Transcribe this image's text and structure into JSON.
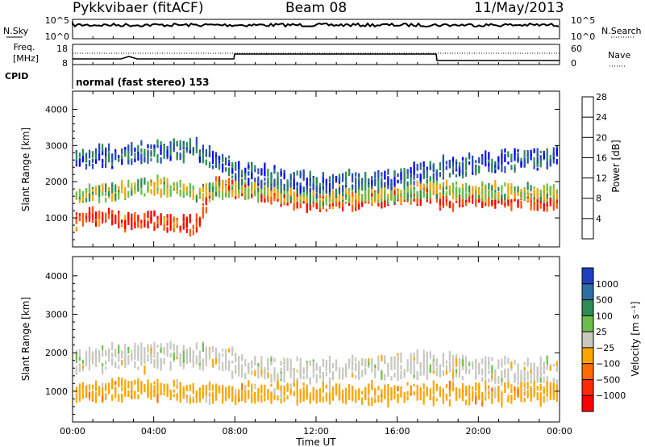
{
  "header": {
    "station": "Pykkvibaer (fitACF)",
    "beam": "Beam 08",
    "date": "11/May/2013"
  },
  "top_panels": {
    "nsky_label": "N.Sky",
    "nsky_ticks": [
      "10^5",
      "10^0"
    ],
    "nsearch_label": "N.Search",
    "nsearch_ticks": [
      "10^5",
      "10^0"
    ],
    "freq_label_1": "Freq.",
    "freq_label_2": "[MHz]",
    "freq_ticks": [
      "18",
      "8"
    ],
    "nave_label": "Nave",
    "nave_ticks": [
      "60",
      "0"
    ],
    "cpid_label": "CPID",
    "cpid_text": "normal (fast stereo) 153"
  },
  "chart_data": [
    {
      "type": "heatmap",
      "panel": "power",
      "ylabel": "Slant Range [km]",
      "xlabel": "",
      "ylim": [
        200,
        4500
      ],
      "yticks": [
        "1000",
        "2000",
        "3000",
        "4000"
      ],
      "colorbar_label": "Power [dB]",
      "colorbar_ticks": [
        "4",
        "8",
        "12",
        "16",
        "20",
        "24",
        "28"
      ],
      "colorbar_colors": [
        "#0000ff",
        "#2d4fb0",
        "#2e8b57",
        "#6abf4b",
        "#ffa500",
        "#ff5a00",
        "#ff0000"
      ],
      "colorbar_range": [
        0,
        30
      ],
      "echo_bands": [
        {
          "x": [
            0.2,
            1,
            2,
            3,
            4,
            5,
            6,
            6.5,
            7,
            8,
            9,
            10,
            11,
            12,
            13,
            14,
            15,
            16,
            17,
            17.9,
            18.1,
            19,
            20,
            21,
            22,
            23,
            23.8
          ],
          "y": [
            900,
            1000,
            1000,
            900,
            950,
            800,
            800,
            1300,
            1900,
            1800,
            1700,
            1600,
            1500,
            1450,
            1450,
            1500,
            1550,
            1600,
            1650,
            1700,
            1450,
            1500,
            1550,
            1500,
            1500,
            1450,
            1500
          ],
          "width": 380,
          "power": 26
        },
        {
          "x": [
            0.2,
            1,
            2,
            3,
            4,
            5,
            6,
            7,
            8,
            10,
            12,
            14,
            16,
            18,
            20,
            22,
            23.8
          ],
          "y": [
            1600,
            1700,
            1700,
            1800,
            1900,
            1800,
            1700,
            1800,
            1800,
            1700,
            1600,
            1650,
            1700,
            1800,
            1750,
            1700,
            1700
          ],
          "width": 380,
          "power": 16
        },
        {
          "x": [
            0.2,
            2,
            4,
            6,
            8,
            10,
            12,
            14,
            16,
            18,
            20,
            22,
            23.8
          ],
          "y": [
            2700,
            2700,
            2800,
            2900,
            2300,
            2100,
            1900,
            2000,
            2100,
            2300,
            2500,
            2600,
            2700
          ],
          "width": 500,
          "power": 7
        }
      ]
    },
    {
      "type": "heatmap",
      "panel": "velocity",
      "ylabel": "Slant Range [km]",
      "xlabel": "Time UT",
      "ylim": [
        200,
        4500
      ],
      "yticks": [
        "1000",
        "2000",
        "3000",
        "4000"
      ],
      "xticks": [
        "00:00",
        "04:00",
        "08:00",
        "12:00",
        "16:00",
        "20:00",
        "00:00"
      ],
      "colorbar_label": "Velocity [m s⁻¹]",
      "colorbar_ticks": [
        "1000",
        "500",
        "100",
        "25",
        "−25",
        "−100",
        "−500",
        "−1000"
      ],
      "colorbar_colors": [
        "#1f3fbf",
        "#2e6ea6",
        "#2e8b57",
        "#6abf4b",
        "#c8c8c0",
        "#ffa500",
        "#ff6a00",
        "#ff2a00",
        "#ff0000"
      ],
      "echo_bands": [
        {
          "x": [
            0.2,
            2,
            4,
            6,
            7,
            8,
            10,
            12,
            14,
            16,
            18,
            20,
            22,
            23.8
          ],
          "y": [
            1800,
            1900,
            1900,
            1900,
            1900,
            1700,
            1600,
            1550,
            1550,
            1600,
            1700,
            1550,
            1500,
            1500
          ],
          "width": 560,
          "velocity": 0
        },
        {
          "x": [
            0.2,
            1,
            2,
            3,
            4,
            5,
            5.5
          ],
          "y": [
            900,
            1000,
            1000,
            1050,
            1050,
            1000,
            950
          ],
          "width": 420,
          "velocity": -150
        }
      ]
    }
  ]
}
